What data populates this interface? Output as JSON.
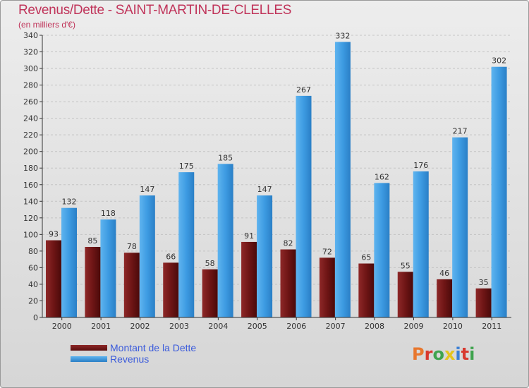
{
  "title": "Revenus/Dette - SAINT-MARTIN-DE-CLELLES",
  "subtitle": "(en milliers d'€)",
  "logo": "Proxiti",
  "chart_data": {
    "type": "bar",
    "title": "Revenus/Dette - SAINT-MARTIN-DE-CLELLES",
    "subtitle": "(en milliers d'€)",
    "categories": [
      "2000",
      "2001",
      "2002",
      "2003",
      "2004",
      "2005",
      "2006",
      "2007",
      "2008",
      "2009",
      "2010",
      "2011"
    ],
    "series": [
      {
        "name": "Montant de la Dette",
        "values": [
          93,
          85,
          78,
          66,
          58,
          91,
          82,
          72,
          65,
          55,
          46,
          35
        ],
        "color": "#7a1d1d"
      },
      {
        "name": "Revenus",
        "values": [
          132,
          118,
          147,
          175,
          185,
          147,
          267,
          332,
          162,
          176,
          217,
          302
        ],
        "color": "#3a96de"
      }
    ],
    "ylim": [
      0,
      340
    ],
    "yticks": [
      0,
      20,
      40,
      60,
      80,
      100,
      120,
      140,
      160,
      180,
      200,
      220,
      240,
      260,
      280,
      300,
      320,
      340
    ],
    "grid": true,
    "legend_position": "bottom-left"
  },
  "colors": {
    "title": "#c0345a",
    "debt": "#7a1d1d",
    "revenue": "#3a96de",
    "legend_text": "#3b5bdb"
  }
}
